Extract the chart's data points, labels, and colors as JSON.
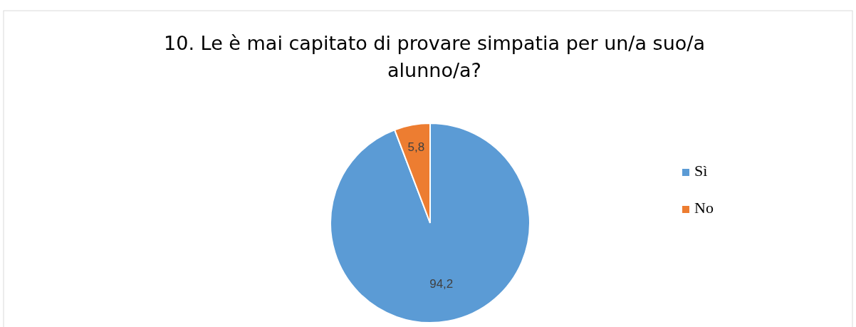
{
  "chart_data": {
    "type": "pie",
    "title": "10. Le è mai capitato di provare simpatia per un/a suo/a alunno/a?",
    "categories": [
      "Sì",
      "No"
    ],
    "values": [
      94.2,
      5.8
    ],
    "colors": [
      "#5b9bd5",
      "#ed7d31"
    ],
    "value_labels": [
      "94,2",
      "5,8"
    ],
    "legend": "right"
  }
}
